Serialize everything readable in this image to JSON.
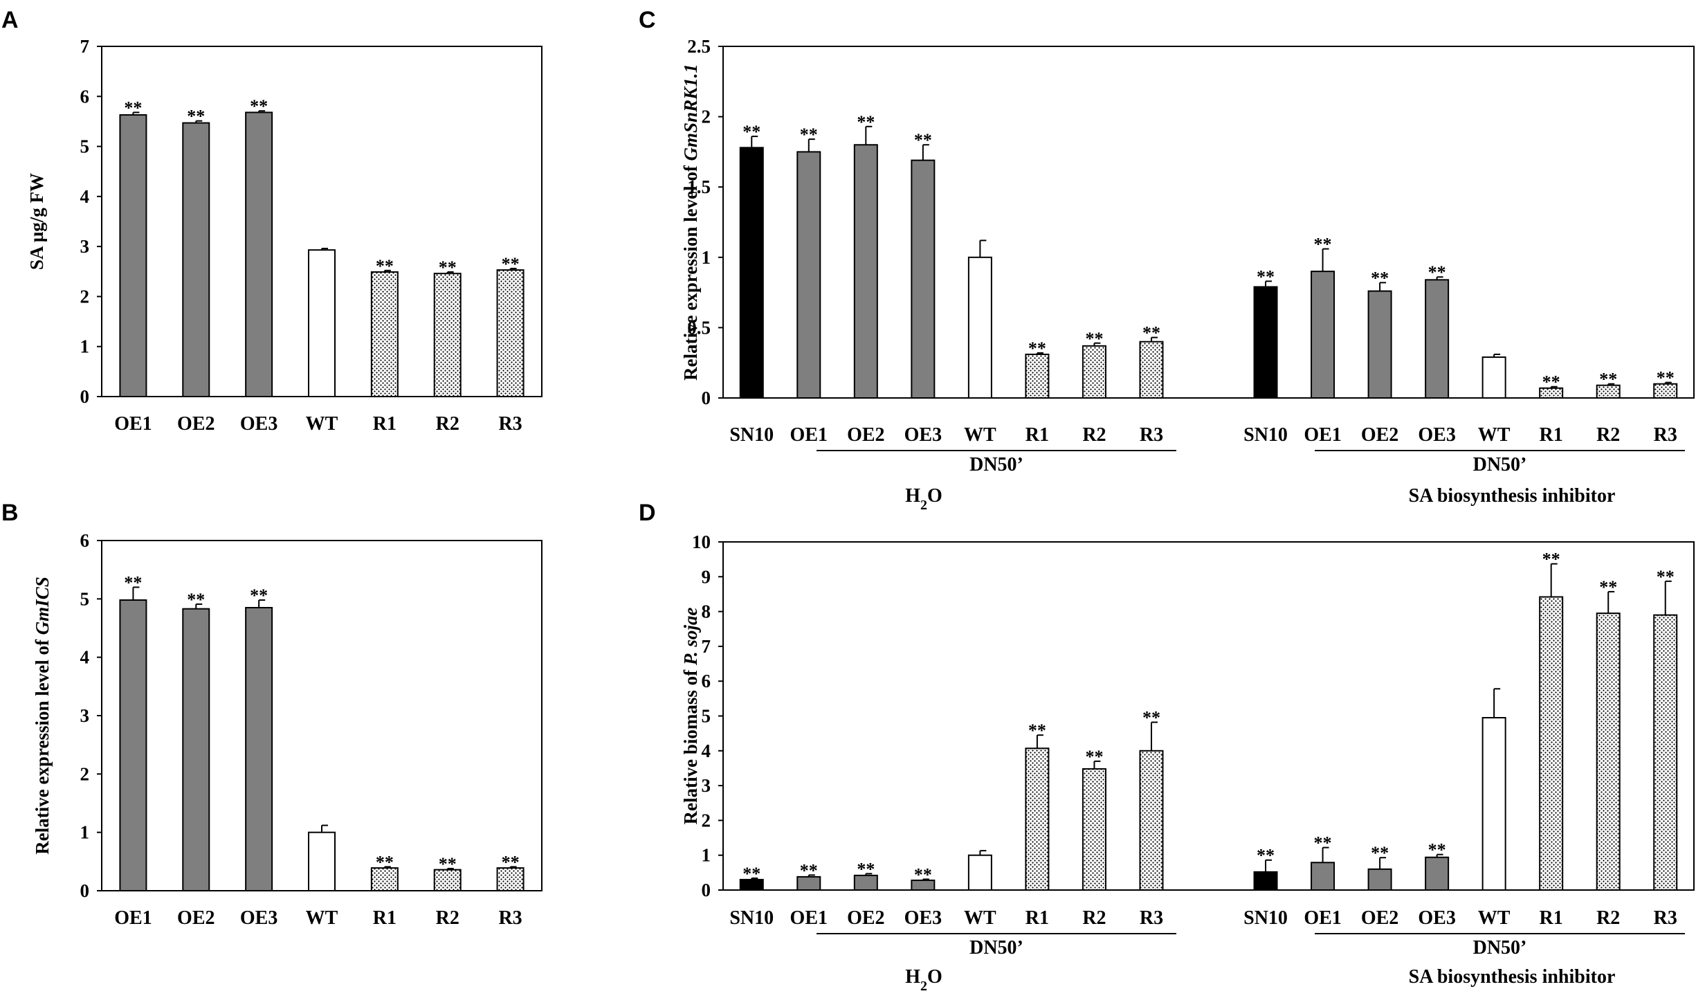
{
  "chart_data": [
    {
      "id": "A",
      "type": "bar",
      "panel_label": "A",
      "ylabel_parts": [
        {
          "text": "SA µg/g FW",
          "italic": false
        }
      ],
      "ylim": [
        0,
        7
      ],
      "yticks": [
        "0",
        "1",
        "2",
        "3",
        "4",
        "5",
        "6",
        "7"
      ],
      "categories": [
        "OE1",
        "OE2",
        "OE3",
        "WT",
        "R1",
        "R2",
        "R3"
      ],
      "values": [
        5.63,
        5.47,
        5.68,
        2.93,
        2.49,
        2.46,
        2.53
      ],
      "errors": [
        0.05,
        0.04,
        0.03,
        0.03,
        0.03,
        0.03,
        0.03
      ],
      "fills": [
        "gray",
        "gray",
        "gray",
        "white",
        "dotted",
        "dotted",
        "dotted"
      ],
      "significance": [
        "**",
        "**",
        "**",
        "",
        "**",
        "**",
        "**"
      ],
      "groups": []
    },
    {
      "id": "B",
      "type": "bar",
      "panel_label": "B",
      "ylabel_parts": [
        {
          "text": "Relative expression level of ",
          "italic": false
        },
        {
          "text": "GmICS",
          "italic": true
        }
      ],
      "ylim": [
        0,
        6
      ],
      "yticks": [
        "0",
        "1",
        "2",
        "3",
        "4",
        "5",
        "6"
      ],
      "categories": [
        "OE1",
        "OE2",
        "OE3",
        "WT",
        "R1",
        "R2",
        "R3"
      ],
      "values": [
        4.98,
        4.83,
        4.85,
        1.0,
        0.39,
        0.36,
        0.39
      ],
      "errors": [
        0.22,
        0.08,
        0.13,
        0.12,
        0.02,
        0.02,
        0.02
      ],
      "fills": [
        "gray",
        "gray",
        "gray",
        "white",
        "dotted",
        "dotted",
        "dotted"
      ],
      "significance": [
        "**",
        "**",
        "**",
        "",
        "**",
        "**",
        "**"
      ],
      "groups": []
    },
    {
      "id": "C",
      "type": "bar",
      "panel_label": "C",
      "ylabel_parts": [
        {
          "text": "Relative expression level of ",
          "italic": false
        },
        {
          "text": "GmSnRK1.1",
          "italic": true
        }
      ],
      "ylim": [
        0,
        2.5
      ],
      "yticks": [
        "0",
        "0.5",
        "1",
        "1.5",
        "2",
        "2.5"
      ],
      "categories": [
        "SN10",
        "OE1",
        "OE2",
        "OE3",
        "WT",
        "R1",
        "R2",
        "R3",
        "SN10",
        "OE1",
        "OE2",
        "OE3",
        "WT",
        "R1",
        "R2",
        "R3"
      ],
      "values": [
        1.78,
        1.75,
        1.8,
        1.69,
        1.0,
        0.31,
        0.37,
        0.4,
        0.79,
        0.9,
        0.76,
        0.84,
        0.29,
        0.07,
        0.09,
        0.1
      ],
      "errors": [
        0.08,
        0.09,
        0.13,
        0.11,
        0.12,
        0.01,
        0.02,
        0.03,
        0.04,
        0.16,
        0.06,
        0.02,
        0.02,
        0.01,
        0.01,
        0.01
      ],
      "fills": [
        "black",
        "gray",
        "gray",
        "gray",
        "white",
        "dotted",
        "dotted",
        "dotted",
        "black",
        "gray",
        "gray",
        "gray",
        "white",
        "dotted",
        "dotted",
        "dotted"
      ],
      "significance": [
        "**",
        "**",
        "**",
        "**",
        "",
        "**",
        "**",
        "**",
        "**",
        "**",
        "**",
        "**",
        "",
        "**",
        "**",
        "**"
      ],
      "groups": [
        {
          "sub_label": "DN50’",
          "label_parts": [
            {
              "text": "H",
              "sub": false
            },
            {
              "text": "2",
              "sub": true
            },
            {
              "text": "O",
              "sub": false
            }
          ]
        },
        {
          "sub_label": "DN50’",
          "label_parts": [
            {
              "text": "SA biosynthesis inhibitor",
              "sub": false
            }
          ]
        }
      ]
    },
    {
      "id": "D",
      "type": "bar",
      "panel_label": "D",
      "ylabel_parts": [
        {
          "text": "Relative biomass of ",
          "italic": false
        },
        {
          "text": "P. sojae",
          "italic": true
        }
      ],
      "ylim": [
        0,
        10
      ],
      "yticks": [
        "0",
        "1",
        "2",
        "3",
        "4",
        "5",
        "6",
        "7",
        "8",
        "9",
        "10"
      ],
      "categories": [
        "SN10",
        "OE1",
        "OE2",
        "OE3",
        "WT",
        "R1",
        "R2",
        "R3",
        "SN10",
        "OE1",
        "OE2",
        "OE3",
        "WT",
        "R1",
        "R2",
        "R3"
      ],
      "values": [
        0.3,
        0.38,
        0.42,
        0.28,
        1.0,
        4.07,
        3.48,
        4.0,
        0.52,
        0.79,
        0.6,
        0.94,
        4.95,
        8.42,
        7.95,
        7.9
      ],
      "errors": [
        0.04,
        0.05,
        0.05,
        0.03,
        0.13,
        0.38,
        0.22,
        0.82,
        0.34,
        0.43,
        0.33,
        0.08,
        0.83,
        0.95,
        0.62,
        0.97
      ],
      "fills": [
        "black",
        "gray",
        "gray",
        "gray",
        "white",
        "dotted",
        "dotted",
        "dotted",
        "black",
        "gray",
        "gray",
        "gray",
        "white",
        "dotted",
        "dotted",
        "dotted"
      ],
      "significance": [
        "**",
        "**",
        "**",
        "**",
        "",
        "**",
        "**",
        "**",
        "**",
        "**",
        "**",
        "**",
        "",
        "**",
        "**",
        "**"
      ],
      "groups": [
        {
          "sub_label": "DN50’",
          "label_parts": [
            {
              "text": "H",
              "sub": false
            },
            {
              "text": "2",
              "sub": true
            },
            {
              "text": "O",
              "sub": false
            }
          ]
        },
        {
          "sub_label": "DN50’",
          "label_parts": [
            {
              "text": "SA biosynthesis inhibitor",
              "sub": false
            }
          ]
        }
      ]
    }
  ],
  "colors": {
    "black": "#000000",
    "gray": "#7f7f7f",
    "white": "#ffffff",
    "axis": "#000000"
  }
}
